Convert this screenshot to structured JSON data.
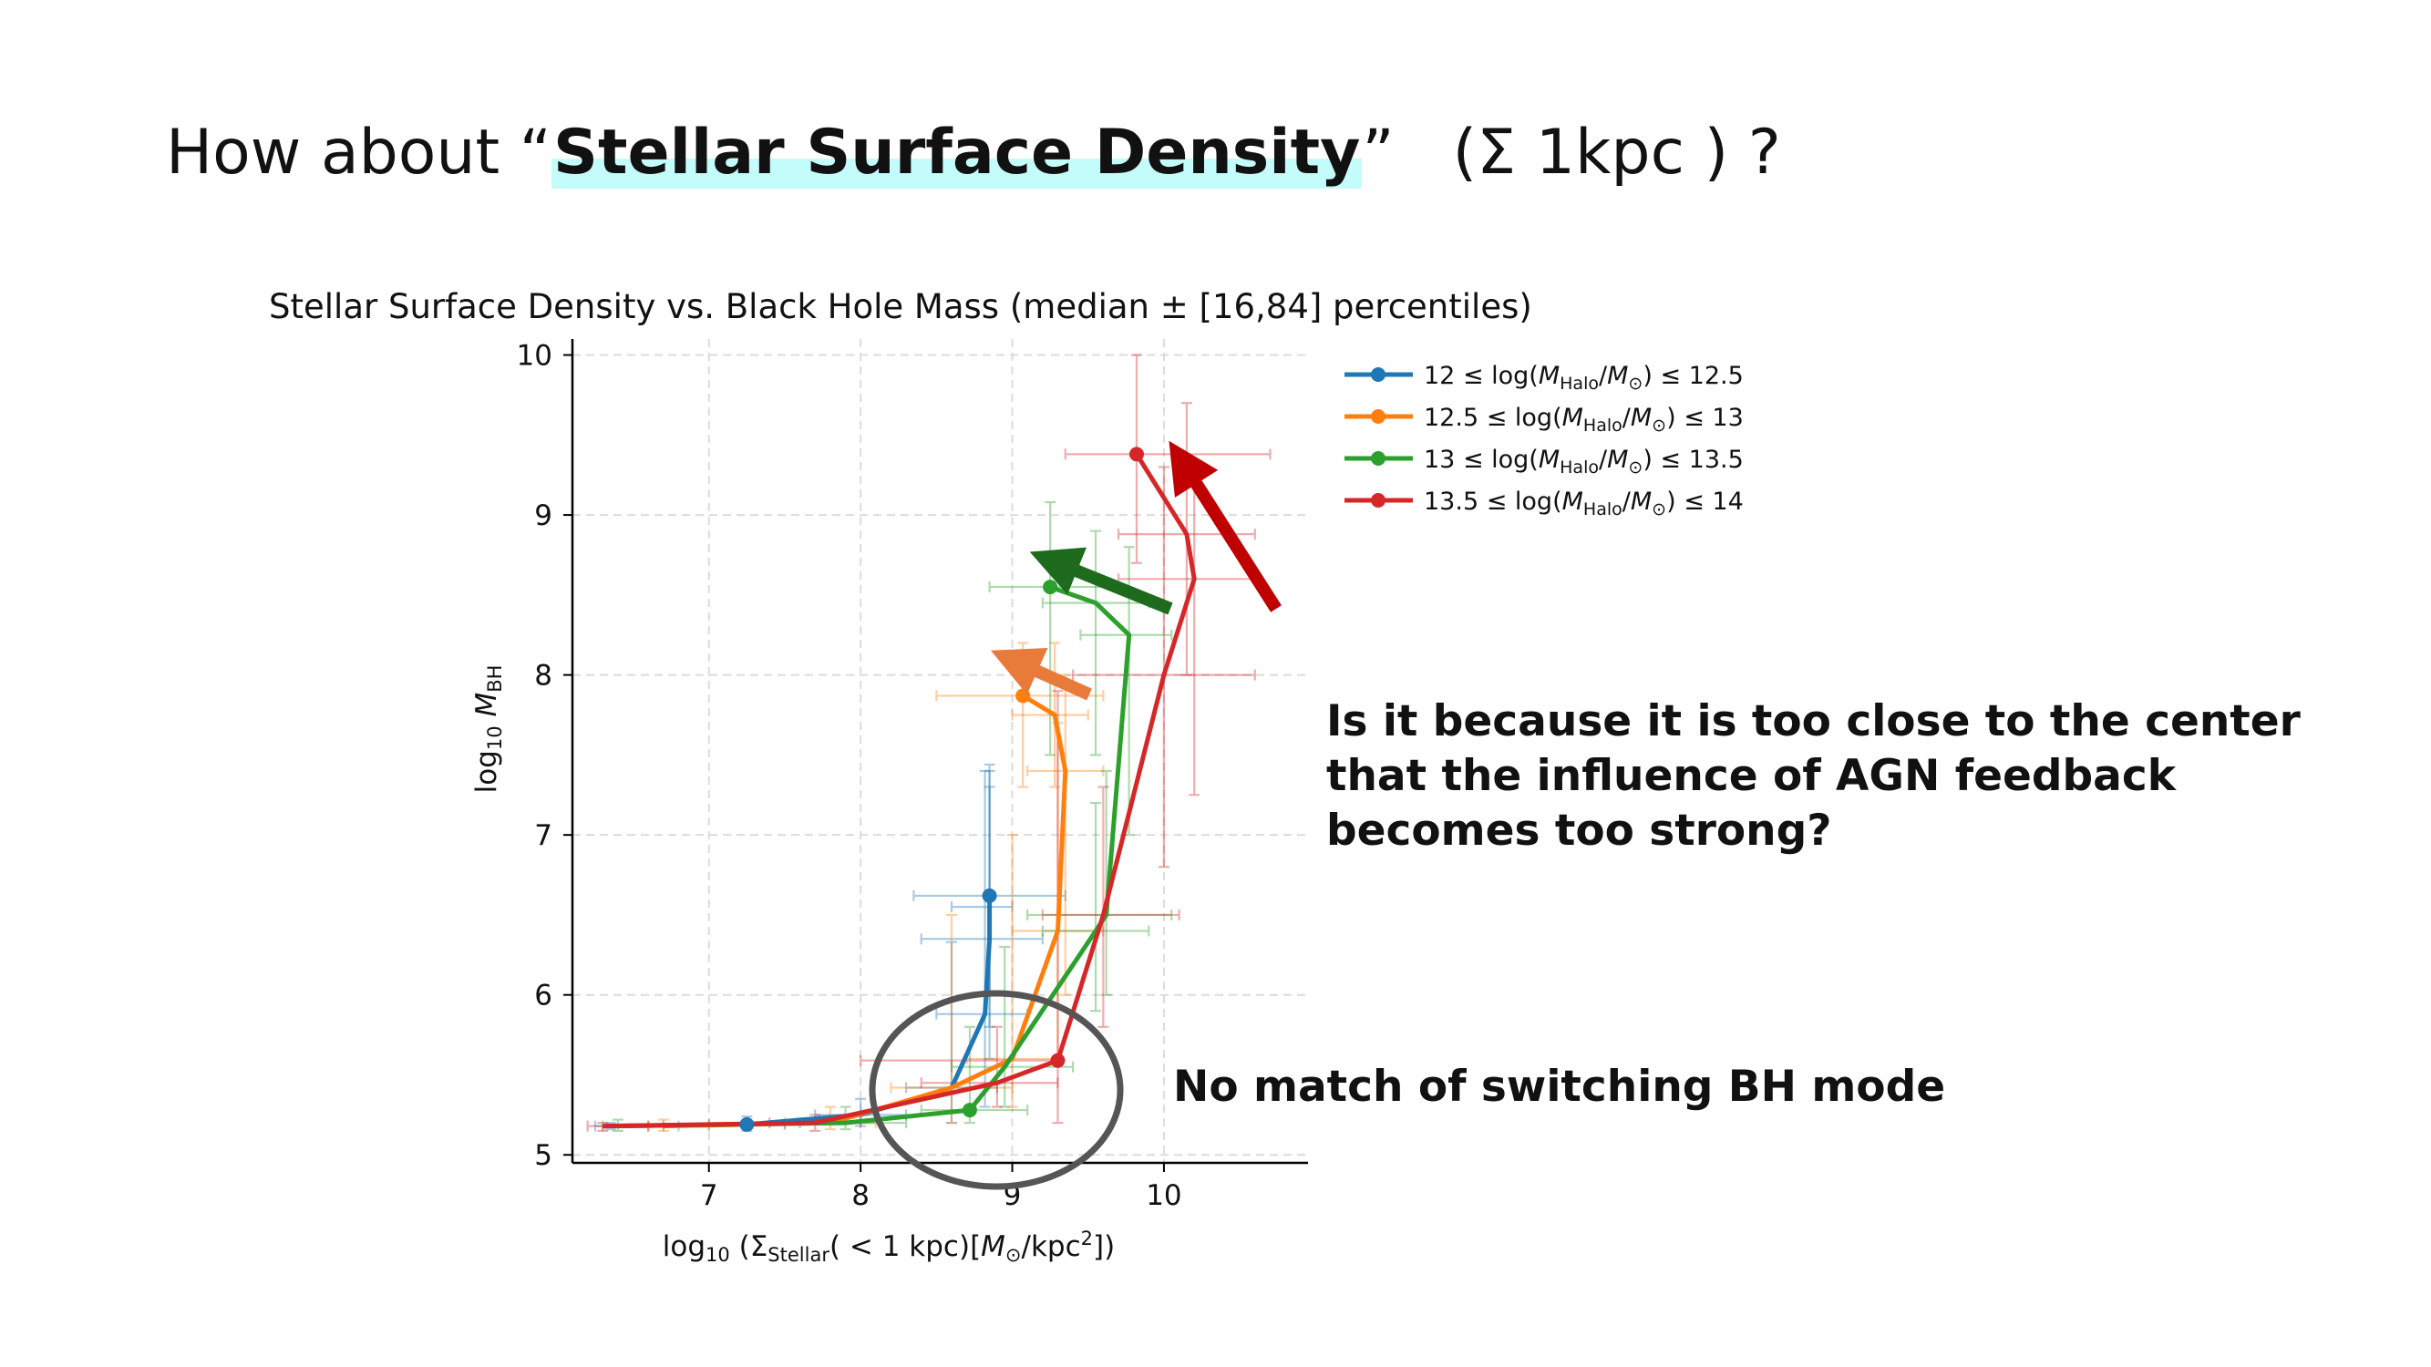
{
  "slide": {
    "title_prefix": "How about “",
    "title_highlight": "Stellar Surface Density",
    "title_close": "”",
    "title_tail": "(Σ 1kpc ) ?",
    "question_lines": [
      "Is it because it is too close to the center",
      "that the influence of AGN feedback",
      "becomes too strong?"
    ],
    "note": "No match of switching BH mode"
  },
  "colors": {
    "blue": "#1f77b4",
    "orange": "#ff7f0e",
    "green": "#2ca02c",
    "red": "#d62728",
    "arrow_red": "#c00000",
    "arrow_green": "#1e6b1e",
    "arrow_orange": "#e87a3a",
    "circle": "#555555",
    "highlight": "#c4fbfb"
  },
  "chart_data": {
    "type": "line",
    "title": "Stellar Surface Density vs. Black Hole Mass (median ± [16,84] percentiles)",
    "xlabel": "log₁₀ (ΣStellar(< 1 kpc)[M⊙/kpc²])",
    "ylabel": "log₁₀ M_BH",
    "xlim": [
      6.1,
      10.95
    ],
    "ylim": [
      4.95,
      10.1
    ],
    "xticks": [
      7,
      8,
      9,
      10
    ],
    "yticks": [
      5,
      6,
      7,
      8,
      9,
      10
    ],
    "grid": true,
    "legend_position": "right-top, outside",
    "series": [
      {
        "name": "12 ≤ log(M_Halo/M⊙) ≤ 12.5",
        "color": "#1f77b4",
        "x": [
          6.35,
          7.25,
          8.0,
          8.6,
          8.82,
          8.85,
          8.85,
          8.85
        ],
        "y": [
          5.18,
          5.19,
          5.25,
          5.42,
          5.88,
          6.35,
          6.55,
          6.62
        ],
        "xerr": [
          [
            6.25,
            6.7
          ],
          [
            7.0,
            7.5
          ],
          [
            7.7,
            8.3
          ],
          [
            8.3,
            8.9
          ],
          [
            8.5,
            9.1
          ],
          [
            8.4,
            9.2
          ],
          [
            8.6,
            9.0
          ],
          [
            8.35,
            9.35
          ]
        ],
        "yerr": [
          [
            5.16,
            5.2
          ],
          [
            5.15,
            5.24
          ],
          [
            5.18,
            5.35
          ],
          [
            5.2,
            6.33
          ],
          [
            5.3,
            7.4
          ],
          [
            5.6,
            7.3
          ],
          [
            5.8,
            7.4
          ],
          [
            6.0,
            7.44
          ]
        ],
        "markers": [
          1,
          7
        ]
      },
      {
        "name": "12.5 ≤ log(M_Halo/M⊙) ≤ 13",
        "color": "#ff7f0e",
        "x": [
          6.7,
          7.8,
          8.6,
          9.0,
          9.3,
          9.35,
          9.28,
          9.07
        ],
        "y": [
          5.18,
          5.2,
          5.42,
          5.6,
          6.4,
          7.4,
          7.75,
          7.87
        ],
        "xerr": [
          [
            6.6,
            7.0
          ],
          [
            7.5,
            8.1
          ],
          [
            8.2,
            9.0
          ],
          [
            8.7,
            9.3
          ],
          [
            9.0,
            9.6
          ],
          [
            9.1,
            9.6
          ],
          [
            9.0,
            9.5
          ],
          [
            8.5,
            9.6
          ]
        ],
        "yerr": [
          [
            5.15,
            5.22
          ],
          [
            5.16,
            5.3
          ],
          [
            5.2,
            6.5
          ],
          [
            5.3,
            7.0
          ],
          [
            5.6,
            7.7
          ],
          [
            6.0,
            8.0
          ],
          [
            7.3,
            8.2
          ],
          [
            7.3,
            8.2
          ]
        ],
        "markers": [
          7
        ]
      },
      {
        "name": "13 ≤ log(M_Halo/M⊙) ≤ 13.5",
        "color": "#2ca02c",
        "x": [
          6.4,
          7.9,
          8.72,
          8.95,
          9.55,
          9.62,
          9.77,
          9.55,
          9.25
        ],
        "y": [
          5.18,
          5.2,
          5.28,
          5.55,
          6.4,
          6.5,
          8.25,
          8.45,
          8.55
        ],
        "xerr": [
          [
            6.3,
            6.8
          ],
          [
            7.6,
            8.3
          ],
          [
            8.4,
            9.1
          ],
          [
            8.6,
            9.4
          ],
          [
            9.2,
            9.9
          ],
          [
            9.1,
            10.05
          ],
          [
            9.45,
            10.05
          ],
          [
            9.2,
            9.9
          ],
          [
            8.85,
            9.7
          ]
        ],
        "yerr": [
          [
            5.15,
            5.22
          ],
          [
            5.16,
            5.3
          ],
          [
            5.2,
            5.8
          ],
          [
            5.3,
            6.3
          ],
          [
            5.9,
            7.2
          ],
          [
            6.0,
            7.4
          ],
          [
            7.0,
            8.8
          ],
          [
            7.5,
            8.9
          ],
          [
            7.5,
            9.08
          ]
        ],
        "markers": [
          2,
          8
        ]
      },
      {
        "name": "13.5 ≤ log(M_Halo/M⊙) ≤ 14",
        "color": "#d62728",
        "x": [
          6.3,
          7.7,
          8.9,
          9.3,
          9.6,
          10.0,
          10.2,
          10.15,
          9.82
        ],
        "y": [
          5.18,
          5.2,
          5.45,
          5.59,
          6.5,
          8.0,
          8.6,
          8.88,
          9.38
        ],
        "xerr": [
          [
            6.2,
            6.6
          ],
          [
            7.4,
            8.0
          ],
          [
            8.4,
            9.3
          ],
          [
            8.0,
            9.3
          ],
          [
            9.2,
            10.1
          ],
          [
            9.4,
            10.6
          ],
          [
            9.7,
            10.6
          ],
          [
            9.7,
            10.6
          ],
          [
            9.35,
            10.7
          ]
        ],
        "yerr": [
          [
            5.15,
            5.2
          ],
          [
            5.15,
            5.25
          ],
          [
            5.3,
            5.8
          ],
          [
            5.2,
            7.9
          ],
          [
            5.8,
            7.3
          ],
          [
            6.8,
            9.3
          ],
          [
            7.25,
            9.25
          ],
          [
            8.0,
            9.7
          ],
          [
            8.7,
            10.0
          ]
        ],
        "markers": [
          3,
          8
        ]
      }
    ]
  }
}
